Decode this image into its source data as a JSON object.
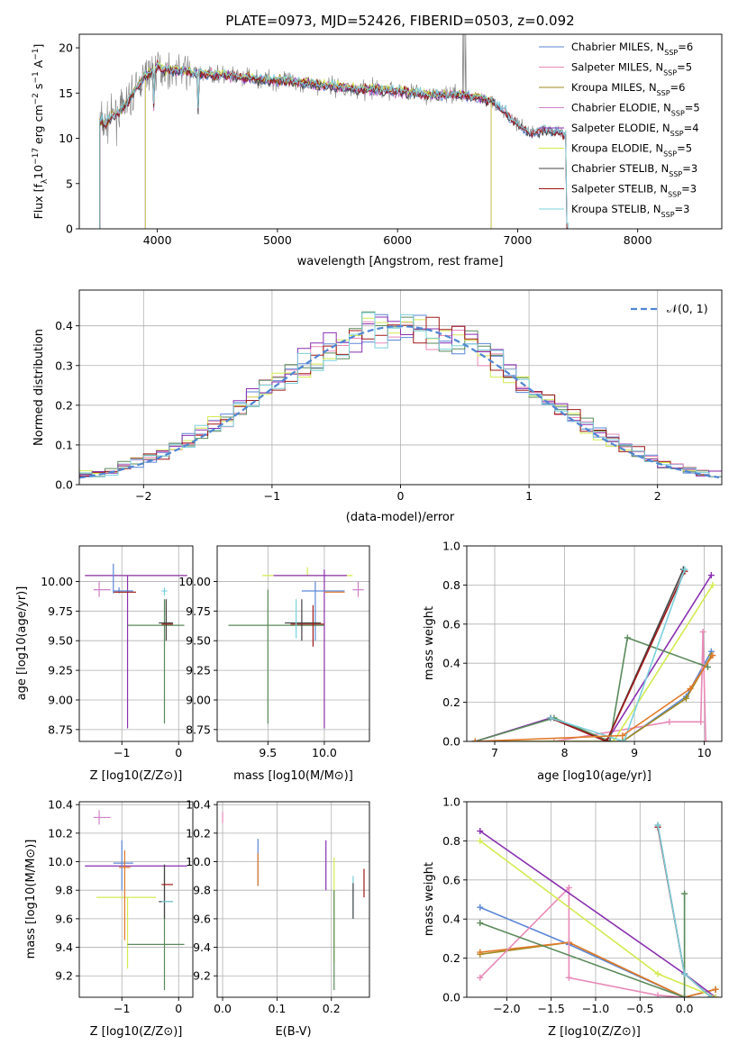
{
  "title": "PLATE=0973, MJD=52426, FIBERID=0503, z=0.092",
  "colors": {
    "Chabrier MILES": "#5b86d6",
    "Salpeter MILES": "#e88ab8",
    "Kroupa MILES": "#a08a20",
    "Chabrier ELODIE": "#d080c8",
    "Salpeter ELODIE": "#8a2fb0",
    "Kroupa ELODIE": "#d4ea50",
    "Chabrier STELIB": "#444444",
    "Salpeter STELIB": "#a01818",
    "Kroupa STELIB": "#7ad0dc",
    "extra_green": "#5a8a5a",
    "extra_orange": "#e07a2a"
  },
  "chart_data": [
    {
      "type": "line",
      "id": "spectrum",
      "title": "PLATE=0973, MJD=52426, FIBERID=0503, z=0.092",
      "xlabel": "wavelength [Angstrom, rest frame]",
      "ylabel_parts": [
        "Flux [f",
        "λ",
        "10",
        "−17",
        " erg cm",
        "−2",
        " s",
        "−1",
        " A",
        "−1",
        "]"
      ],
      "xlim": [
        3350,
        8700
      ],
      "ylim": [
        0,
        21.5
      ],
      "xticks": [
        4000,
        5000,
        6000,
        7000,
        8000
      ],
      "yticks": [
        0,
        5,
        10,
        15,
        20
      ],
      "grid": false,
      "legend_position": "top-right",
      "data_line_color": "#808080",
      "legend": [
        {
          "label": "Chabrier MILES, N",
          "sub": "SSP",
          "suffix": "=6"
        },
        {
          "label": "Salpeter MILES, N",
          "sub": "SSP",
          "suffix": "=5"
        },
        {
          "label": "Kroupa MILES, N",
          "sub": "SSP",
          "suffix": "=6"
        },
        {
          "label": "Chabrier ELODIE, N",
          "sub": "SSP",
          "suffix": "=5"
        },
        {
          "label": "Salpeter ELODIE, N",
          "sub": "SSP",
          "suffix": "=4"
        },
        {
          "label": "Kroupa ELODIE, N",
          "sub": "SSP",
          "suffix": "=5"
        },
        {
          "label": "Chabrier STELIB, N",
          "sub": "SSP",
          "suffix": "=3"
        },
        {
          "label": "Salpeter STELIB, N",
          "sub": "SSP",
          "suffix": "=3"
        },
        {
          "label": "Kroupa STELIB, N",
          "sub": "SSP",
          "suffix": "=3"
        }
      ],
      "continuum_x": [
        3520,
        3560,
        3620,
        3700,
        3800,
        3900,
        4000,
        4100,
        4200,
        4300,
        4500,
        4700,
        5000,
        5300,
        5600,
        6000,
        6300,
        6500,
        6700,
        6800,
        6900,
        7000,
        7100,
        7200,
        7300,
        7400
      ],
      "continuum_y": [
        12.0,
        11.5,
        12.4,
        13.0,
        15.0,
        17.0,
        17.8,
        17.5,
        17.5,
        17.2,
        17.0,
        16.7,
        16.4,
        16.0,
        15.5,
        15.2,
        14.8,
        14.8,
        14.5,
        14.0,
        12.8,
        11.5,
        10.5,
        11.0,
        10.8,
        10.5
      ]
    },
    {
      "type": "histogram",
      "id": "residuals",
      "xlabel": "(data-model)/error",
      "ylabel": "Normed distribution",
      "xlim": [
        -2.5,
        2.5
      ],
      "ylim": [
        0,
        0.49
      ],
      "xticks": [
        -2,
        -1,
        0,
        1,
        2
      ],
      "yticks": [
        0.0,
        0.1,
        0.2,
        0.3,
        0.4
      ],
      "grid": true,
      "legend_position": "top-right",
      "legend_label": "𝒩(0, 1)",
      "bin_width": 0.1
    },
    {
      "type": "scatter",
      "id": "age_vs_Z",
      "xlabel": "Z [log10(Z/Z⊙)]",
      "ylabel": "age  [log10(age/yr)]",
      "xlim": [
        -1.75,
        0.25
      ],
      "ylim": [
        8.65,
        10.3
      ],
      "xticks": [
        -1,
        0
      ],
      "yticks": [
        8.75,
        9.0,
        9.25,
        9.5,
        9.75,
        10.0
      ],
      "grid": true
    },
    {
      "type": "scatter",
      "id": "age_vs_mass",
      "xlabel": "mass [log10(M/M⊙)]",
      "ylabel": "",
      "xlim": [
        9.05,
        10.4
      ],
      "ylim": [
        8.65,
        10.3
      ],
      "xticks": [
        9.5,
        10.0
      ],
      "yticks": [
        8.75,
        9.0,
        9.25,
        9.5,
        9.75,
        10.0
      ],
      "grid": true
    },
    {
      "type": "line",
      "id": "massweight_vs_age",
      "xlabel": "age  [log10(age/yr)]",
      "ylabel": "mass weight",
      "xlim": [
        6.6,
        10.25
      ],
      "ylim": [
        0,
        1.0
      ],
      "xticks": [
        7,
        8,
        9,
        10
      ],
      "yticks": [
        0.0,
        0.2,
        0.4,
        0.6,
        0.8,
        1.0
      ],
      "grid": true
    },
    {
      "type": "scatter",
      "id": "mass_vs_Z",
      "xlabel": "Z [log10(Z/Z⊙)]",
      "ylabel": "mass [log10(M/M⊙)]",
      "xlim": [
        -1.75,
        0.25
      ],
      "ylim": [
        9.05,
        10.42
      ],
      "xticks": [
        -1,
        0
      ],
      "yticks": [
        9.2,
        9.4,
        9.6,
        9.8,
        10.0,
        10.2,
        10.4
      ],
      "grid": true
    },
    {
      "type": "scatter",
      "id": "mass_vs_ebv",
      "xlabel": "E(B-V)",
      "ylabel": "",
      "xlim": [
        -0.01,
        0.27
      ],
      "ylim": [
        9.05,
        10.42
      ],
      "xticks": [
        0.0,
        0.1,
        0.2
      ],
      "yticks": [
        9.2,
        9.4,
        9.6,
        9.8,
        10.0,
        10.2,
        10.4
      ],
      "grid": true
    },
    {
      "type": "line",
      "id": "massweight_vs_Z",
      "xlabel": "Z [log10(Z/Z⊙)]",
      "ylabel": "mass weight",
      "xlim": [
        -2.45,
        0.42
      ],
      "ylim": [
        0,
        1.0
      ],
      "xticks": [
        -2.0,
        -1.5,
        -1.0,
        -0.5,
        0.0
      ],
      "yticks": [
        0.0,
        0.2,
        0.4,
        0.6,
        0.8,
        1.0
      ],
      "grid": true
    }
  ],
  "panel_points": {
    "age_vs_Z": [
      {
        "c": "Kroupa ELODIE",
        "x": -1.25,
        "y": 10.05,
        "xe": [
          -1.65,
          0.15
        ],
        "ye": [
          10.05,
          10.05
        ]
      },
      {
        "c": "Salpeter ELODIE",
        "x": -1.25,
        "y": 10.05,
        "xe": [
          -1.65,
          0.15
        ],
        "ye": [
          10.05,
          10.05
        ]
      },
      {
        "c": "Chabrier ELODIE",
        "x": -1.4,
        "y": 9.93,
        "xe": [
          -1.5,
          -1.2
        ],
        "ye": [
          9.87,
          10.0
        ]
      },
      {
        "c": "Salpeter ELODIE",
        "x": -0.9,
        "y": 10.05,
        "xe": [
          -0.9,
          -0.9
        ],
        "ye": [
          8.76,
          10.05
        ]
      },
      {
        "c": "Chabrier MILES",
        "x": -1.05,
        "y": 9.92,
        "xe": [
          -1.15,
          -0.8
        ],
        "ye": [
          9.9,
          9.95
        ]
      },
      {
        "c": "Salpeter STELIB",
        "x": -0.95,
        "y": 9.91,
        "xe": [
          -1.15,
          -0.75
        ],
        "ye": [
          9.91,
          9.91
        ]
      },
      {
        "c": "Kroupa STELIB",
        "x": -0.25,
        "y": 9.92,
        "xe": [
          -0.3,
          -0.2
        ],
        "ye": [
          9.88,
          9.95
        ]
      },
      {
        "c": "Chabrier MILES",
        "x": -1.15,
        "y": 10.0,
        "xe": [
          -1.15,
          -1.15
        ],
        "ye": [
          9.9,
          10.15
        ]
      },
      {
        "c": "extra_green",
        "x": -0.25,
        "y": 9.63,
        "xe": [
          -0.9,
          0.1
        ],
        "ye": [
          8.8,
          9.85
        ]
      },
      {
        "c": "Chabrier STELIB",
        "x": -0.22,
        "y": 9.65,
        "xe": [
          -0.35,
          -0.1
        ],
        "ye": [
          9.5,
          9.85
        ]
      },
      {
        "c": "Salpeter STELIB",
        "x": -0.2,
        "y": 9.64,
        "xe": [
          -0.3,
          -0.1
        ],
        "ye": [
          9.64,
          9.64
        ]
      }
    ],
    "age_vs_mass": [
      {
        "c": "Kroupa ELODIE",
        "x": 9.85,
        "y": 10.05,
        "xe": [
          9.45,
          10.25
        ],
        "ye": [
          10.05,
          10.12
        ]
      },
      {
        "c": "Salpeter ELODIE",
        "x": 10.0,
        "y": 10.05,
        "xe": [
          9.55,
          10.2
        ],
        "ye": [
          8.76,
          10.1
        ]
      },
      {
        "c": "Chabrier ELODIE",
        "x": 10.3,
        "y": 9.93,
        "xe": [
          10.25,
          10.35
        ],
        "ye": [
          9.87,
          10.0
        ]
      },
      {
        "c": "Chabrier MILES",
        "x": 9.92,
        "y": 9.92,
        "xe": [
          9.8,
          10.18
        ],
        "ye": [
          9.5,
          10.0
        ]
      },
      {
        "c": "extra_orange",
        "x": 10.0,
        "y": 9.91,
        "xe": [
          10.0,
          10.18
        ],
        "ye": [
          9.91,
          9.91
        ]
      },
      {
        "c": "extra_green",
        "x": 9.5,
        "y": 9.63,
        "xe": [
          9.15,
          10.0
        ],
        "ye": [
          8.8,
          9.93
        ]
      },
      {
        "c": "Chabrier STELIB",
        "x": 9.8,
        "y": 9.65,
        "xe": [
          9.65,
          9.97
        ],
        "ye": [
          9.5,
          9.85
        ]
      },
      {
        "c": "Salpeter STELIB",
        "x": 9.9,
        "y": 9.64,
        "xe": [
          9.7,
          10.0
        ],
        "ye": [
          9.45,
          9.8
        ]
      },
      {
        "c": "Kroupa STELIB",
        "x": 9.75,
        "y": 9.65,
        "xe": [
          9.75,
          9.75
        ],
        "ye": [
          9.52,
          9.85
        ]
      }
    ],
    "mass_vs_Z": [
      {
        "c": "Chabrier ELODIE",
        "x": -1.4,
        "y": 10.31,
        "xe": [
          -1.5,
          -1.2
        ],
        "ye": [
          10.26,
          10.36
        ]
      },
      {
        "c": "Salpeter ELODIE",
        "x": -0.9,
        "y": 9.97,
        "xe": [
          -1.65,
          0.15
        ],
        "ye": [
          9.97,
          9.97
        ]
      },
      {
        "c": "Kroupa ELODIE",
        "x": -0.9,
        "y": 9.75,
        "xe": [
          -1.45,
          -0.4
        ],
        "ye": [
          9.25,
          9.75
        ]
      },
      {
        "c": "Chabrier MILES",
        "x": -1.0,
        "y": 9.99,
        "xe": [
          -1.15,
          -0.8
        ],
        "ye": [
          9.8,
          10.15
        ]
      },
      {
        "c": "extra_orange",
        "x": -0.95,
        "y": 9.96,
        "xe": [
          -1.05,
          -0.85
        ],
        "ye": [
          9.45,
          10.08
        ]
      },
      {
        "c": "extra_green",
        "x": -0.25,
        "y": 9.42,
        "xe": [
          -0.9,
          0.1
        ],
        "ye": [
          9.1,
          9.98
        ]
      },
      {
        "c": "Chabrier STELIB",
        "x": -0.25,
        "y": 9.72,
        "xe": [
          -0.35,
          -0.1
        ],
        "ye": [
          9.6,
          9.98
        ]
      },
      {
        "c": "Salpeter STELIB",
        "x": -0.22,
        "y": 9.84,
        "xe": [
          -0.3,
          -0.1
        ],
        "ye": [
          9.84,
          9.84
        ]
      },
      {
        "c": "Kroupa STELIB",
        "x": -0.25,
        "y": 9.72,
        "xe": [
          -0.3,
          -0.1
        ],
        "ye": [
          9.72,
          9.72
        ]
      }
    ],
    "mass_vs_ebv": [
      {
        "c": "Salpeter MILES",
        "x": 0.0,
        "y": 10.32,
        "xe": [
          0.0,
          0.0
        ],
        "ye": [
          10.27,
          10.35
        ]
      },
      {
        "c": "Chabrier MILES",
        "x": 0.065,
        "y": 10.0,
        "xe": [
          0.065,
          0.065
        ],
        "ye": [
          9.83,
          10.16
        ]
      },
      {
        "c": "extra_orange",
        "x": 0.065,
        "y": 9.95,
        "xe": [
          0.065,
          0.065
        ],
        "ye": [
          9.83,
          10.06
        ]
      },
      {
        "c": "Salpeter ELODIE",
        "x": 0.19,
        "y": 9.97,
        "xe": [
          0.19,
          0.19
        ],
        "ye": [
          9.8,
          10.15
        ]
      },
      {
        "c": "Kroupa ELODIE",
        "x": 0.205,
        "y": 9.7,
        "xe": [
          0.205,
          0.205
        ],
        "ye": [
          9.3,
          10.03
        ]
      },
      {
        "c": "extra_green",
        "x": 0.205,
        "y": 9.45,
        "xe": [
          0.205,
          0.205
        ],
        "ye": [
          9.1,
          9.8
        ]
      },
      {
        "c": "Kroupa STELIB",
        "x": 0.24,
        "y": 9.75,
        "xe": [
          0.24,
          0.24
        ],
        "ye": [
          9.6,
          9.9
        ]
      },
      {
        "c": "Chabrier STELIB",
        "x": 0.24,
        "y": 9.72,
        "xe": [
          0.24,
          0.24
        ],
        "ye": [
          9.6,
          9.85
        ]
      },
      {
        "c": "Salpeter STELIB",
        "x": 0.26,
        "y": 9.85,
        "xe": [
          0.26,
          0.26
        ],
        "ye": [
          9.75,
          9.95
        ]
      }
    ]
  },
  "weight_lines_age": [
    {
      "c": "Chabrier MILES",
      "x": [
        6.72,
        8.83,
        9.74,
        10.1
      ],
      "y": [
        0.0,
        0.0,
        0.23,
        0.46
      ]
    },
    {
      "c": "Salpeter MILES",
      "x": [
        6.72,
        7.85,
        9.5,
        9.95,
        9.98,
        10.02
      ],
      "y": [
        0.0,
        0.0,
        0.1,
        0.1,
        0.56,
        0.0
      ]
    },
    {
      "c": "Kroupa MILES",
      "x": [
        6.72,
        8.83,
        9.74,
        10.1
      ],
      "y": [
        0.0,
        0.0,
        0.22,
        0.44
      ]
    },
    {
      "c": "Salpeter ELODIE",
      "x": [
        6.72,
        7.8,
        8.6,
        10.1
      ],
      "y": [
        0.0,
        0.12,
        0.0,
        0.85
      ]
    },
    {
      "c": "Kroupa ELODIE",
      "x": [
        6.72,
        8.7,
        10.12
      ],
      "y": [
        0.0,
        0.0,
        0.8
      ]
    },
    {
      "c": "extra_green",
      "x": [
        6.72,
        7.85,
        8.65,
        8.9,
        10.05
      ],
      "y": [
        0.0,
        0.12,
        0.0,
        0.53,
        0.38
      ]
    },
    {
      "c": "Chabrier STELIB",
      "x": [
        7.8,
        8.6,
        9.7
      ],
      "y": [
        0.12,
        0.0,
        0.88
      ]
    },
    {
      "c": "Salpeter STELIB",
      "x": [
        7.8,
        8.6,
        9.72
      ],
      "y": [
        0.12,
        0.0,
        0.87
      ]
    },
    {
      "c": "Kroupa STELIB",
      "x": [
        7.8,
        8.85,
        9.72
      ],
      "y": [
        0.12,
        0.0,
        0.88
      ]
    },
    {
      "c": "extra_orange",
      "x": [
        6.72,
        8.83,
        9.8,
        10.12
      ],
      "y": [
        0.0,
        0.03,
        0.27,
        0.44
      ]
    }
  ],
  "weight_lines_Z": [
    {
      "c": "Chabrier MILES",
      "x": [
        -2.3,
        -1.3,
        0.0,
        0.35
      ],
      "y": [
        0.46,
        0.27,
        0.0,
        0.04
      ]
    },
    {
      "c": "Kroupa MILES",
      "x": [
        -2.3,
        -1.3,
        0.0,
        0.35
      ],
      "y": [
        0.22,
        0.28,
        0.0,
        0.04
      ]
    },
    {
      "c": "extra_orange",
      "x": [
        -2.3,
        -1.3,
        0.0,
        0.35
      ],
      "y": [
        0.23,
        0.28,
        0.0,
        0.04
      ]
    },
    {
      "c": "Salpeter MILES",
      "x": [
        -2.3,
        -1.3,
        -1.3,
        -0.3,
        0.0
      ],
      "y": [
        0.1,
        0.56,
        0.1,
        0.01,
        0.0
      ]
    },
    {
      "c": "Salpeter ELODIE",
      "x": [
        -2.3,
        0.0,
        0.35
      ],
      "y": [
        0.85,
        0.12,
        0.0
      ]
    },
    {
      "c": "Kroupa ELODIE",
      "x": [
        -2.3,
        -0.3,
        0.35
      ],
      "y": [
        0.8,
        0.12,
        0.0
      ]
    },
    {
      "c": "extra_green",
      "x": [
        -2.3,
        0.0,
        0.0
      ],
      "y": [
        0.38,
        0.0,
        0.53
      ]
    },
    {
      "c": "Chabrier STELIB",
      "x": [
        -0.3,
        0.0,
        0.3
      ],
      "y": [
        0.88,
        0.12,
        0.0
      ]
    },
    {
      "c": "Salpeter STELIB",
      "x": [
        -0.3,
        0.0,
        0.3
      ],
      "y": [
        0.87,
        0.12,
        0.0
      ]
    },
    {
      "c": "Kroupa STELIB",
      "x": [
        -0.3,
        0.0,
        0.3
      ],
      "y": [
        0.88,
        0.12,
        0.0
      ]
    }
  ]
}
